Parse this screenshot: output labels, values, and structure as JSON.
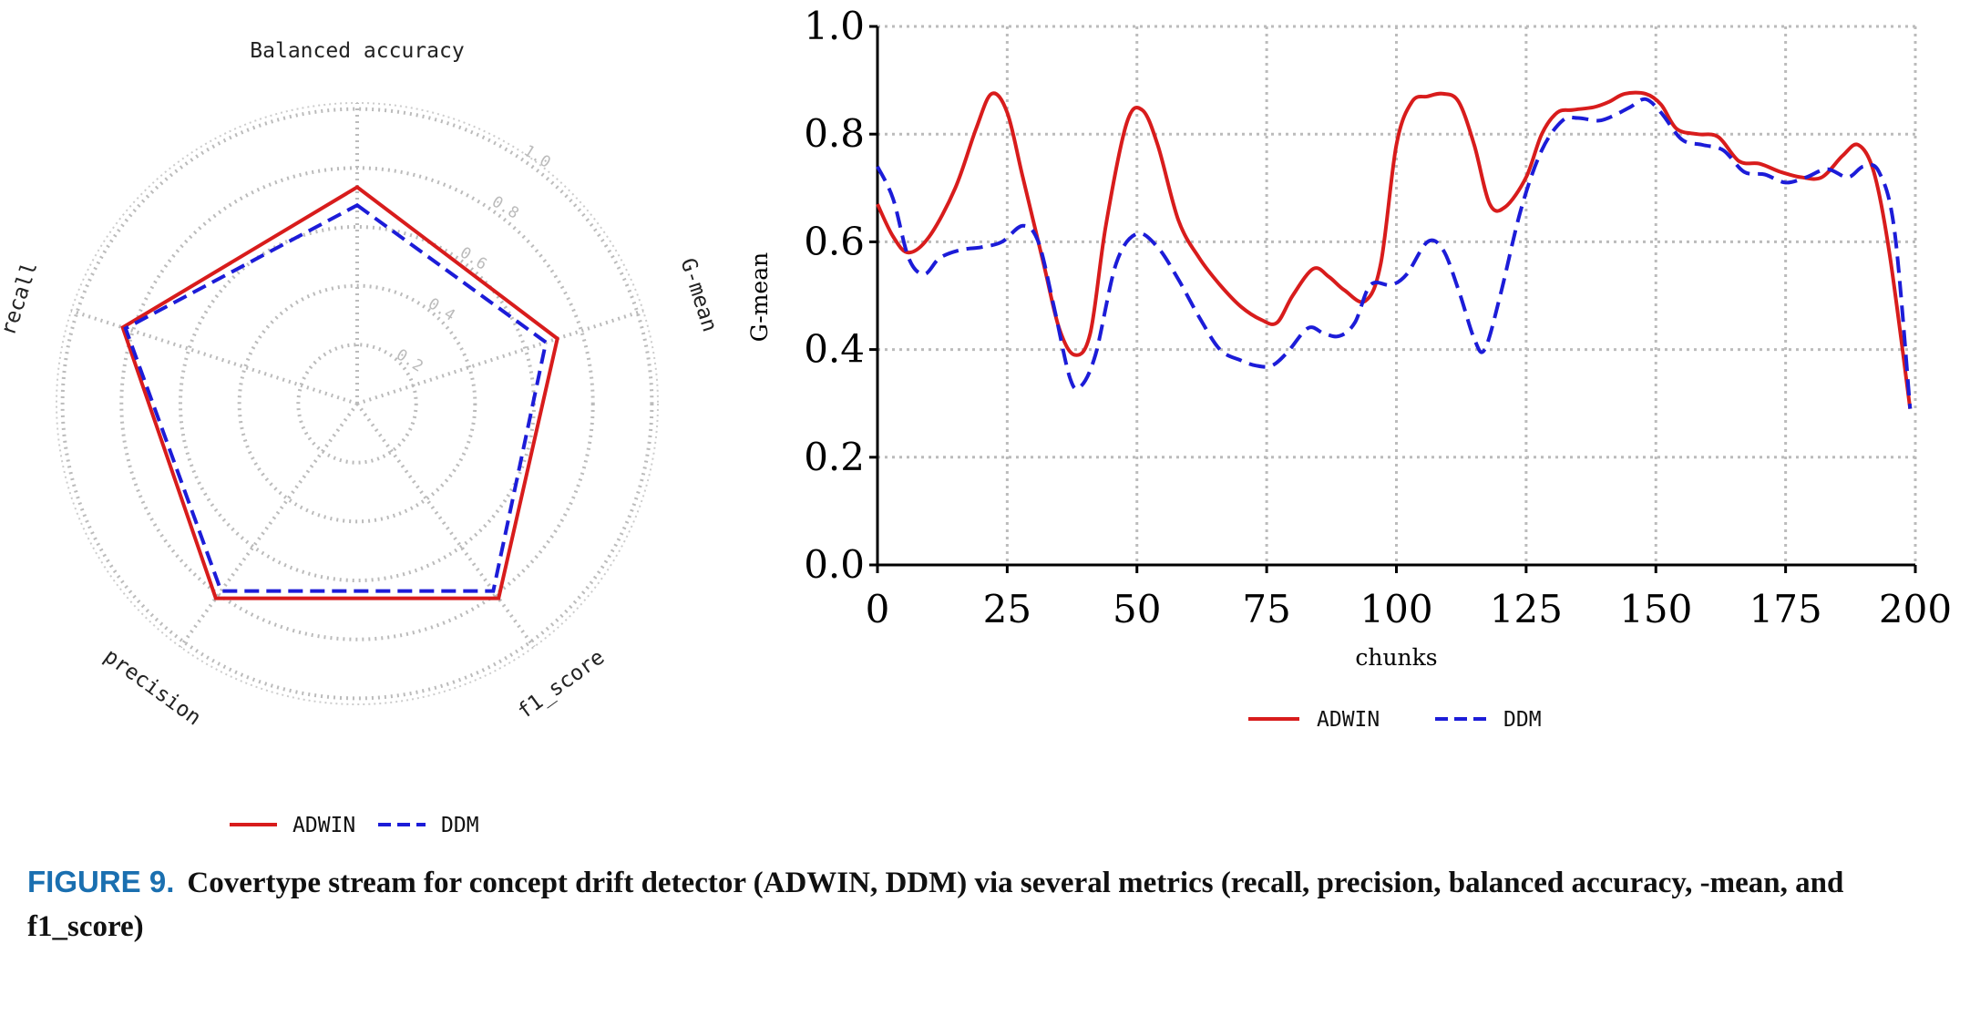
{
  "radar_legend": {
    "items": [
      "ADWIN",
      "DDM"
    ]
  },
  "line_legend": {
    "items": [
      "ADWIN",
      "DDM"
    ]
  },
  "caption": {
    "label": "FIGURE 9.",
    "text": "Covertype stream for concept drift detector (ADWIN, DDM) via several metrics (recall, precision, balanced accuracy, -mean, and f1_score)"
  },
  "colors": {
    "adwin": "#d81c1c",
    "ddm": "#1c1cd8",
    "grid": "#bbbbbb"
  },
  "chart_data": [
    {
      "type": "radar",
      "axes": [
        "Balanced accuracy",
        "G-mean",
        "f1_score",
        "precision",
        "recall"
      ],
      "rlim": [
        0,
        1.0
      ],
      "rticks": [
        "0.2",
        "0.4",
        "0.6",
        "0.8",
        "1.0"
      ],
      "rtick_values": [
        0.2,
        0.4,
        0.6,
        0.8,
        1.0
      ],
      "grid": true,
      "legend": "bottom",
      "series": [
        {
          "name": "ADWIN",
          "style": "solid",
          "values": [
            0.72,
            0.7,
            0.8,
            0.8,
            0.82
          ]
        },
        {
          "name": "DDM",
          "style": "dashed",
          "values": [
            0.66,
            0.66,
            0.77,
            0.77,
            0.81
          ]
        }
      ]
    },
    {
      "type": "line",
      "xlabel": "chunks",
      "ylabel": "G-mean",
      "xlim": [
        0,
        200
      ],
      "ylim": [
        0.0,
        1.0
      ],
      "xticks": [
        "0",
        "25",
        "50",
        "75",
        "100",
        "125",
        "150",
        "175",
        "200"
      ],
      "xtick_values": [
        0,
        25,
        50,
        75,
        100,
        125,
        150,
        175,
        200
      ],
      "yticks": [
        "0.0",
        "0.2",
        "0.4",
        "0.6",
        "0.8",
        "1.0"
      ],
      "ytick_values": [
        0.0,
        0.2,
        0.4,
        0.6,
        0.8,
        1.0
      ],
      "grid": true,
      "legend": "bottom",
      "series": [
        {
          "name": "ADWIN",
          "style": "solid",
          "x": [
            0,
            3,
            6,
            10,
            15,
            19,
            22,
            25,
            28,
            32,
            35,
            38,
            41,
            44,
            48,
            51,
            54,
            58,
            62,
            66,
            70,
            74,
            77,
            80,
            84,
            87,
            90,
            94,
            97,
            100,
            103,
            106,
            109,
            112,
            115,
            118,
            121,
            125,
            128,
            131,
            134,
            138,
            141,
            144,
            148,
            151,
            154,
            158,
            162,
            166,
            170,
            174,
            178,
            182,
            186,
            189,
            192,
            195,
            199
          ],
          "y": [
            0.67,
            0.61,
            0.58,
            0.61,
            0.7,
            0.81,
            0.875,
            0.84,
            0.72,
            0.56,
            0.44,
            0.39,
            0.43,
            0.63,
            0.82,
            0.845,
            0.78,
            0.64,
            0.57,
            0.52,
            0.48,
            0.455,
            0.45,
            0.5,
            0.55,
            0.535,
            0.51,
            0.49,
            0.56,
            0.78,
            0.86,
            0.87,
            0.875,
            0.86,
            0.78,
            0.67,
            0.665,
            0.72,
            0.8,
            0.84,
            0.845,
            0.85,
            0.86,
            0.875,
            0.875,
            0.855,
            0.81,
            0.8,
            0.795,
            0.75,
            0.745,
            0.73,
            0.72,
            0.72,
            0.76,
            0.78,
            0.73,
            0.58,
            0.29
          ]
        },
        {
          "name": "DDM",
          "style": "dashed",
          "x": [
            0,
            3,
            6,
            9,
            12,
            16,
            20,
            24,
            28,
            31,
            34,
            37,
            39,
            42,
            46,
            50,
            54,
            58,
            62,
            66,
            70,
            73,
            76,
            79,
            83,
            86,
            89,
            92,
            95,
            99,
            102,
            106,
            109,
            112,
            115,
            117,
            120,
            124,
            128,
            132,
            135,
            139,
            142,
            145,
            148,
            151,
            155,
            159,
            163,
            167,
            171,
            175,
            179,
            183,
            187,
            190,
            193,
            196,
            199
          ],
          "y": [
            0.74,
            0.68,
            0.57,
            0.54,
            0.57,
            0.585,
            0.59,
            0.6,
            0.63,
            0.6,
            0.48,
            0.35,
            0.33,
            0.39,
            0.56,
            0.615,
            0.59,
            0.53,
            0.46,
            0.4,
            0.38,
            0.37,
            0.37,
            0.395,
            0.44,
            0.43,
            0.425,
            0.45,
            0.52,
            0.52,
            0.54,
            0.6,
            0.585,
            0.51,
            0.42,
            0.4,
            0.5,
            0.66,
            0.77,
            0.825,
            0.83,
            0.825,
            0.835,
            0.85,
            0.865,
            0.84,
            0.79,
            0.78,
            0.77,
            0.73,
            0.725,
            0.71,
            0.72,
            0.735,
            0.72,
            0.74,
            0.73,
            0.62,
            0.29
          ]
        }
      ]
    }
  ]
}
